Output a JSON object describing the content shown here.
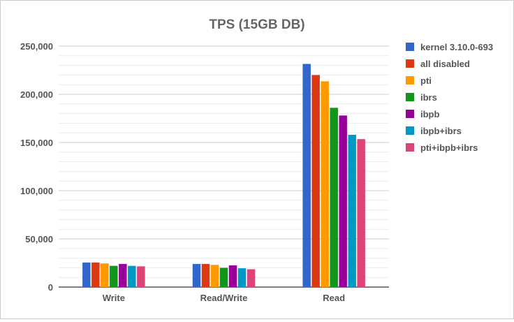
{
  "chart_data": {
    "type": "bar",
    "title": "TPS (15GB DB)",
    "xlabel": "",
    "ylabel": "",
    "categories": [
      "Write",
      "Read/Write",
      "Read"
    ],
    "ylim": [
      0,
      250000
    ],
    "yticks": [
      0,
      50000,
      100000,
      150000,
      200000,
      250000
    ],
    "ytick_labels": [
      "0",
      "50,000",
      "100,000",
      "150,000",
      "200,000",
      "250,000"
    ],
    "grid": true,
    "legend_position": "right",
    "series": [
      {
        "name": "kernel 3.10.0-693",
        "color": "#3366cc",
        "values": [
          25500,
          24000,
          231500
        ]
      },
      {
        "name": "all disabled",
        "color": "#dc3912",
        "values": [
          25500,
          24000,
          220000
        ]
      },
      {
        "name": "pti",
        "color": "#ff9900",
        "values": [
          24500,
          23000,
          213500
        ]
      },
      {
        "name": "ibrs",
        "color": "#109618",
        "values": [
          22000,
          20000,
          186000
        ]
      },
      {
        "name": "ibpb",
        "color": "#990099",
        "values": [
          24000,
          22500,
          178000
        ]
      },
      {
        "name": "ibpb+ibrs",
        "color": "#0099c6",
        "values": [
          22000,
          19500,
          158000
        ]
      },
      {
        "name": "pti+ibpb+ibrs",
        "color": "#dd4477",
        "values": [
          21500,
          18500,
          153500
        ]
      }
    ]
  }
}
